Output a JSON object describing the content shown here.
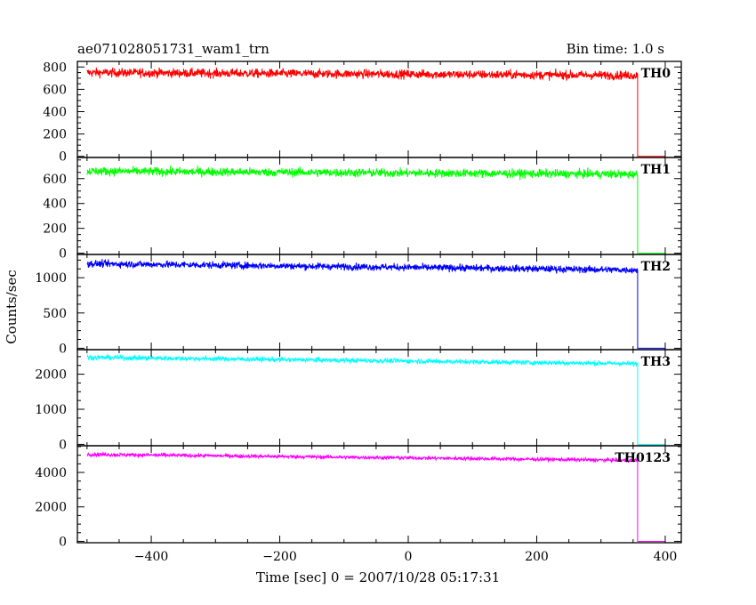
{
  "chart_data": {
    "type": "line",
    "title_left": "ae071028051731_wam1_trn",
    "title_right": "Bin time: 1.0 s",
    "xlabel": "Time [sec] 0 = 2007/10/28 05:17:31",
    "ylabel": "Counts/sec",
    "xlim": [
      -515,
      425
    ],
    "x_ticks": [
      -400,
      -200,
      0,
      200,
      400
    ],
    "grid": false,
    "x_start": -500,
    "x_drop": 357,
    "x_end": 400,
    "panels": [
      {
        "name": "TH0",
        "color": "#ff0000",
        "ylim": [
          -10,
          850
        ],
        "y_ticks": [
          0,
          200,
          400,
          600,
          800
        ],
        "level_start": 750,
        "level_end": 725,
        "noise": 40
      },
      {
        "name": "TH1",
        "color": "#00ff00",
        "ylim": [
          -10,
          770
        ],
        "y_ticks": [
          0,
          200,
          400,
          600
        ],
        "level_start": 660,
        "level_end": 635,
        "noise": 35
      },
      {
        "name": "TH2",
        "color": "#0000ff",
        "ylim": [
          -20,
          1330
        ],
        "y_ticks": [
          0,
          500,
          1000
        ],
        "level_start": 1200,
        "level_end": 1110,
        "noise": 50
      },
      {
        "name": "TH3",
        "color": "#00ffff",
        "ylim": [
          -40,
          2700
        ],
        "y_ticks": [
          0,
          1000,
          2000
        ],
        "level_start": 2480,
        "level_end": 2300,
        "noise": 70
      },
      {
        "name": "TH0123",
        "color": "#ff00ff",
        "ylim": [
          -80,
          5550
        ],
        "y_ticks": [
          0,
          2000,
          4000
        ],
        "level_start": 5050,
        "level_end": 4700,
        "noise": 110
      }
    ]
  }
}
